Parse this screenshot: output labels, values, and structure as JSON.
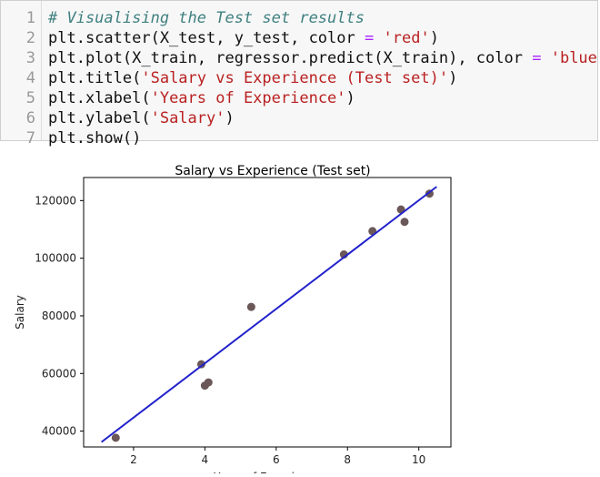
{
  "code_cell": {
    "lines": [
      {
        "n": "1",
        "parts": [
          {
            "t": "# Visualising the Test set results",
            "c": "comment"
          }
        ]
      },
      {
        "n": "2",
        "parts": [
          {
            "t": "plt.scatter(X_test, y_test, color ",
            "c": ""
          },
          {
            "t": "=",
            "c": "op"
          },
          {
            "t": " ",
            "c": ""
          },
          {
            "t": "'red'",
            "c": "str"
          },
          {
            "t": ")",
            "c": ""
          }
        ]
      },
      {
        "n": "3",
        "parts": [
          {
            "t": "plt.plot(X_train, regressor.predict(X_train), color ",
            "c": ""
          },
          {
            "t": "=",
            "c": "op"
          },
          {
            "t": " ",
            "c": ""
          },
          {
            "t": "'blue'",
            "c": "str"
          },
          {
            "t": ")",
            "c": ""
          }
        ]
      },
      {
        "n": "4",
        "parts": [
          {
            "t": "plt.title(",
            "c": ""
          },
          {
            "t": "'Salary vs Experience (Test set)'",
            "c": "str"
          },
          {
            "t": ")",
            "c": ""
          }
        ]
      },
      {
        "n": "5",
        "parts": [
          {
            "t": "plt.xlabel(",
            "c": ""
          },
          {
            "t": "'Years of Experience'",
            "c": "str"
          },
          {
            "t": ")",
            "c": ""
          }
        ]
      },
      {
        "n": "6",
        "parts": [
          {
            "t": "plt.ylabel(",
            "c": ""
          },
          {
            "t": "'Salary'",
            "c": "str"
          },
          {
            "t": ")",
            "c": ""
          }
        ]
      },
      {
        "n": "7",
        "parts": [
          {
            "t": "plt.show()",
            "c": ""
          }
        ]
      }
    ]
  },
  "chart_data": {
    "type": "scatter",
    "title": "Salary vs Experience (Test set)",
    "xlabel": "Years of Experience",
    "ylabel": "Salary",
    "xlim": [
      0.6,
      10.9
    ],
    "ylim": [
      34500,
      128000
    ],
    "xticks": [
      2,
      4,
      6,
      8,
      10
    ],
    "yticks": [
      40000,
      60000,
      80000,
      100000,
      120000
    ],
    "grid": false,
    "series": [
      {
        "type": "scatter",
        "color": "#6b5757",
        "points": [
          [
            1.5,
            37700
          ],
          [
            3.9,
            63200
          ],
          [
            4.0,
            55800
          ],
          [
            4.1,
            56900
          ],
          [
            5.3,
            83100
          ],
          [
            7.9,
            101300
          ],
          [
            8.7,
            109400
          ],
          [
            9.5,
            116900
          ],
          [
            9.6,
            112600
          ],
          [
            10.3,
            122400
          ]
        ]
      },
      {
        "type": "line",
        "color": "#2222cc",
        "points": [
          [
            1.1,
            36200
          ],
          [
            10.5,
            124800
          ]
        ]
      }
    ]
  }
}
